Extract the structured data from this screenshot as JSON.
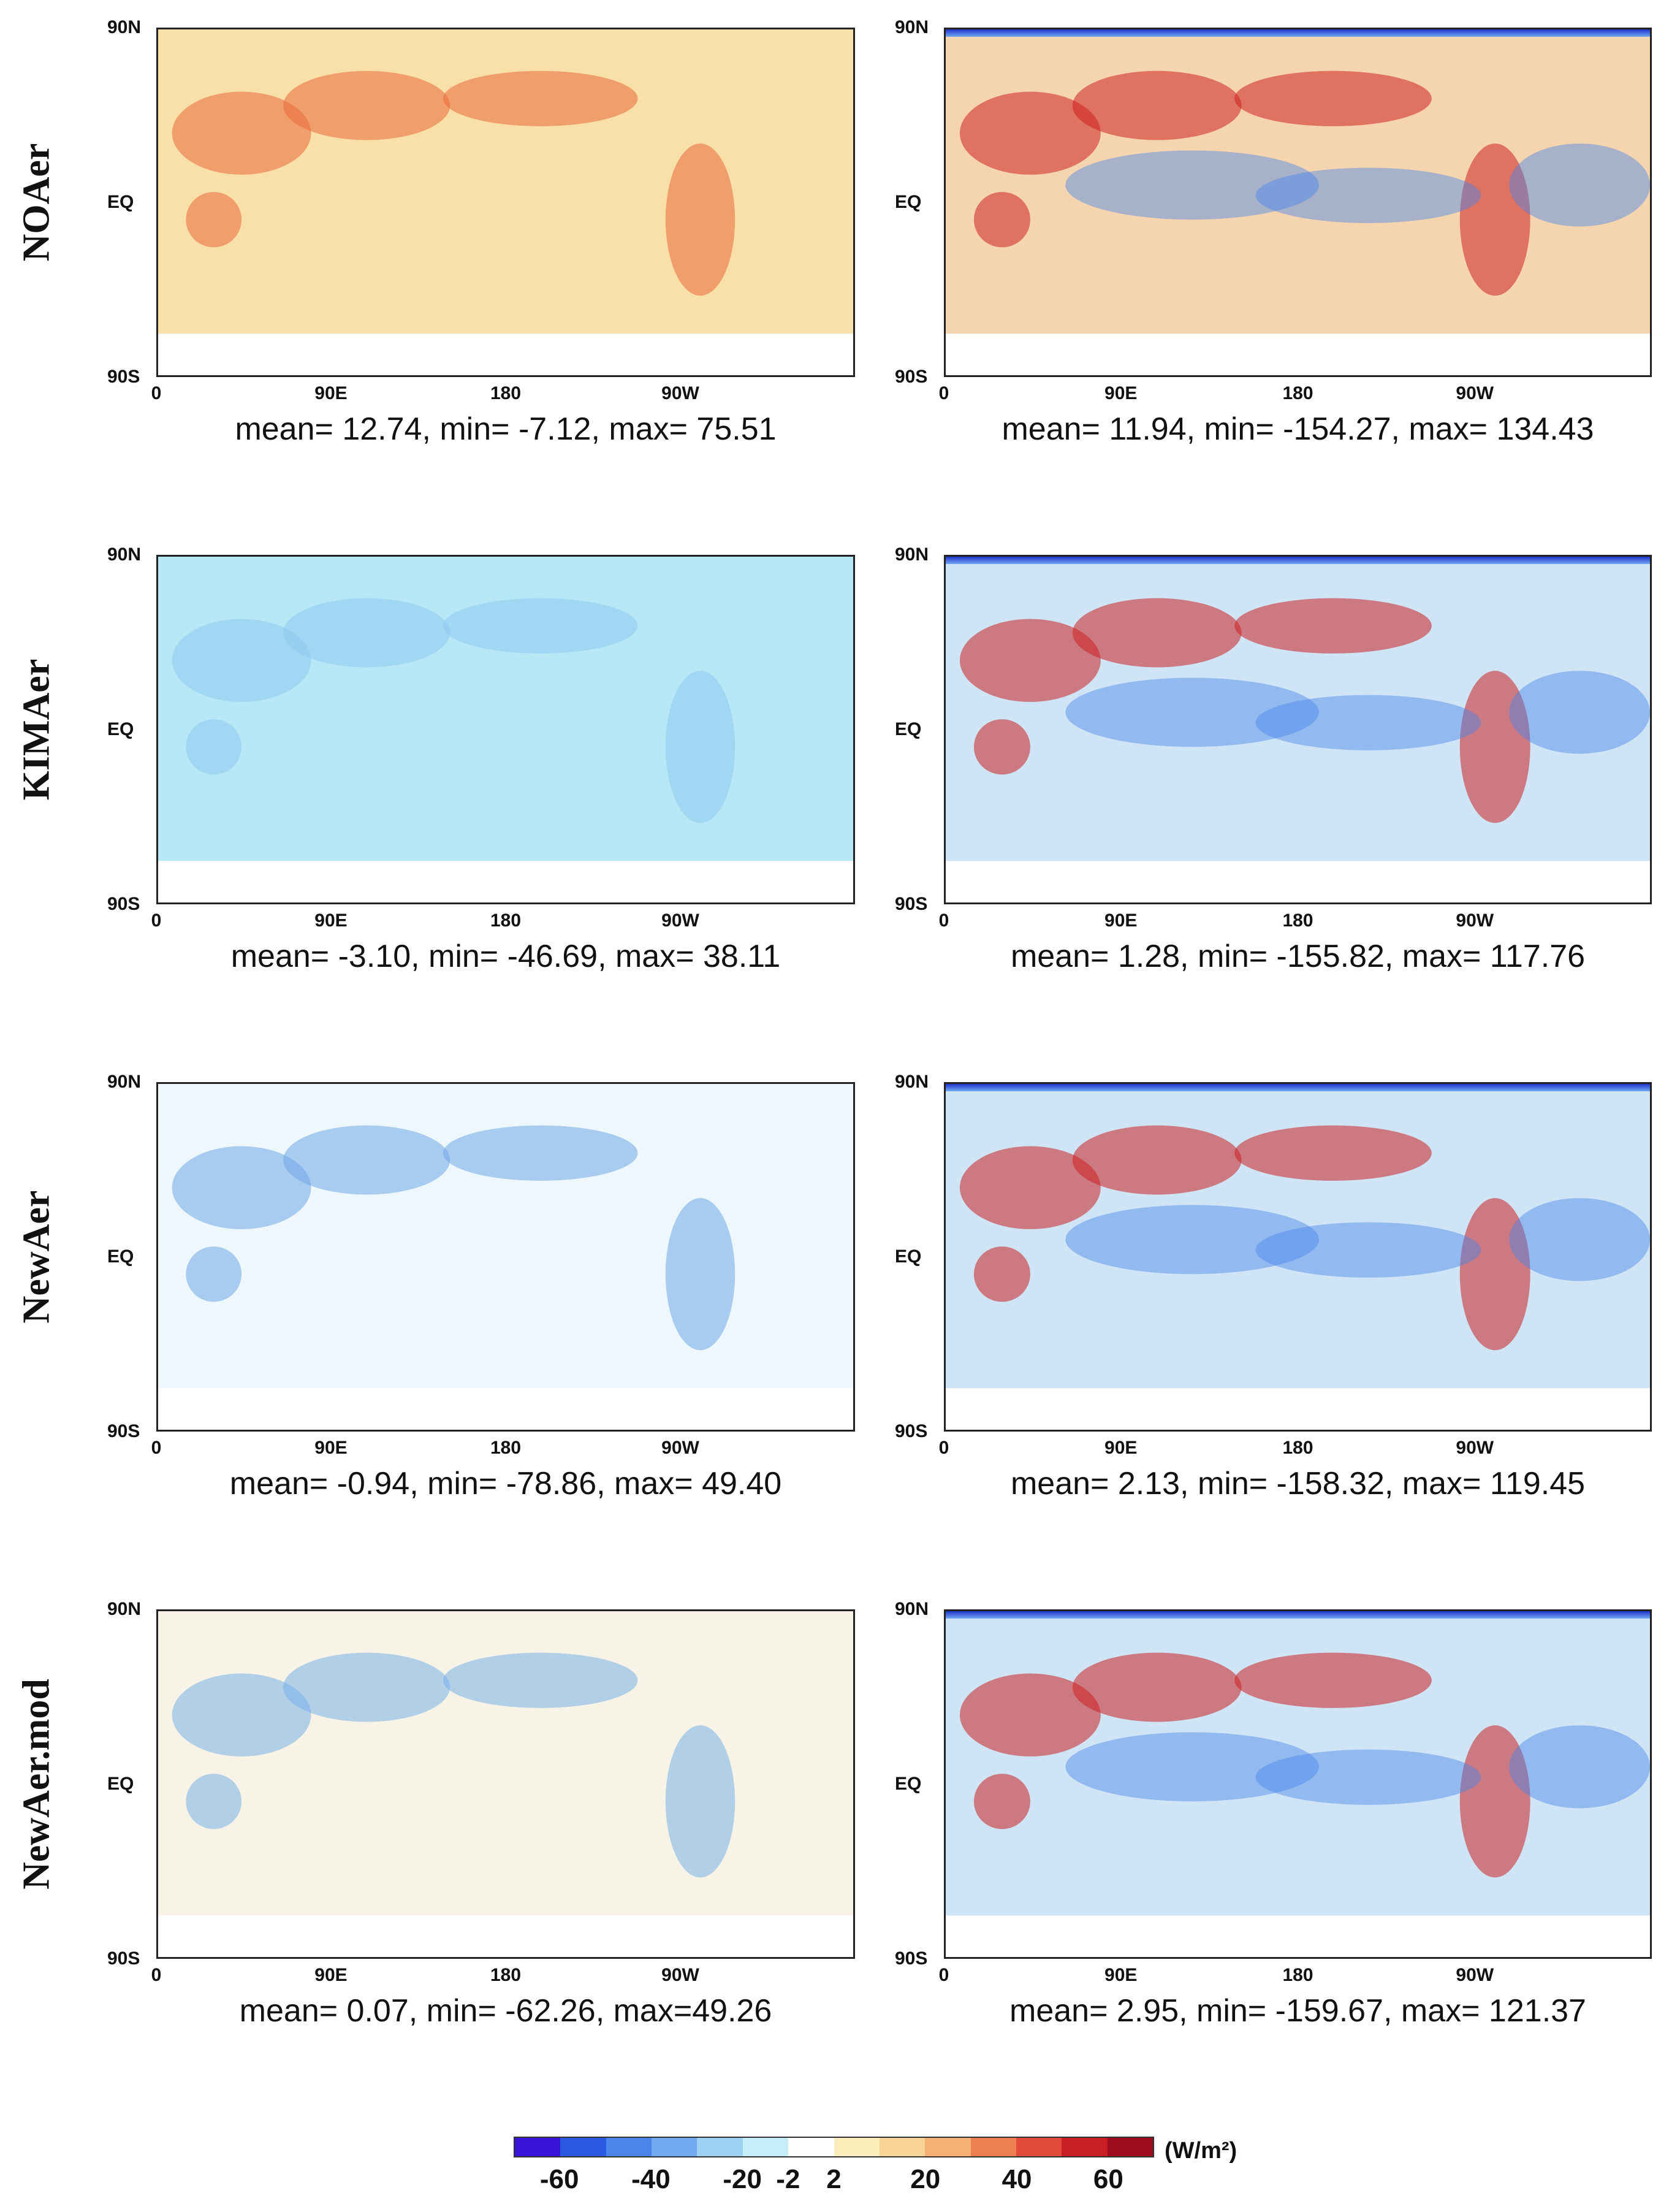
{
  "rows": [
    {
      "label": "NOAer",
      "left": {
        "mean": "mean= 12.74, min= -7.12, max= 75.51",
        "base": "#f9e0a8",
        "accent": "#ea6a3a"
      },
      "right": {
        "mean": "mean= 11.94, min= -154.27, max= 134.43",
        "base": "#f5d5b0",
        "accent": "#cc2020"
      }
    },
    {
      "label": "KIMAer",
      "left": {
        "mean": "mean= -3.10, min= -46.69, max= 38.11",
        "base": "#b8e8f5",
        "accent": "#8ec9f0"
      },
      "right": {
        "mean": "mean= 1.28, min= -155.82, max= 117.76",
        "base": "#cfe5f5",
        "accent": "#cc2020"
      }
    },
    {
      "label": "NewAer",
      "left": {
        "mean": "mean= -0.94, min= -78.86, max= 49.40",
        "base": "#eef7fb",
        "accent": "#6fa8e8"
      },
      "right": {
        "mean": "mean= 2.13, min= -158.32, max= 119.45",
        "base": "#cfe5f5",
        "accent": "#cc2020"
      }
    },
    {
      "label": "NewAer.mod",
      "left": {
        "mean": "mean= 0.07, min= -62.26, max=49.26",
        "base": "#f7f3e6",
        "accent": "#7ab0ea"
      },
      "right": {
        "mean": "mean= 2.95, min= -159.67, max= 121.37",
        "base": "#cfe5f5",
        "accent": "#cc2020"
      }
    }
  ],
  "axis": {
    "lat": [
      "90N",
      "EQ",
      "90S"
    ],
    "lon": [
      "0",
      "90E",
      "180",
      "90W"
    ]
  },
  "colorbar": {
    "colors": [
      "#3a14d8",
      "#2a5ae0",
      "#4a86ea",
      "#72a8f0",
      "#9cd0f5",
      "#c4eef8",
      "#ffffff",
      "#fbeebb",
      "#f8d496",
      "#f5b076",
      "#ee8050",
      "#e24a3a",
      "#c81e24",
      "#9e0a1e"
    ],
    "ticks": [
      "-60",
      "-40",
      "-20",
      "-2",
      "2",
      "20",
      "40",
      "60"
    ],
    "unit": "(W/m²)"
  }
}
